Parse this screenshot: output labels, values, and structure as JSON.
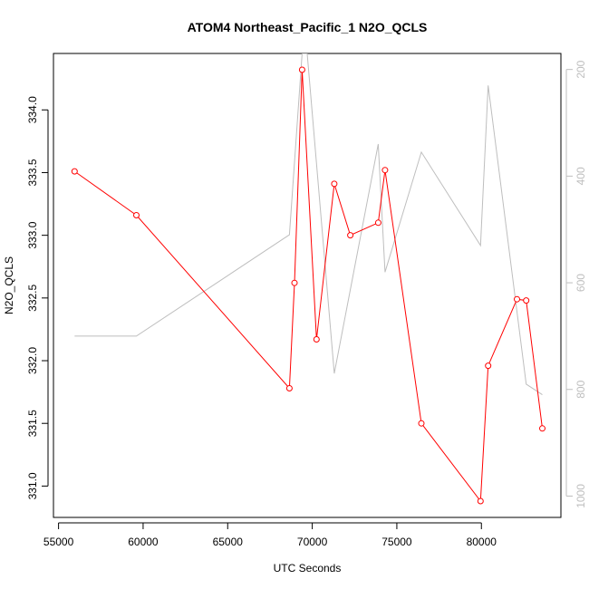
{
  "chart_data": {
    "type": "line",
    "title": "ATOM4 Northeast_Pacific_1 N2O_QCLS",
    "xlabel": "UTC Seconds",
    "ylabel": "N2O_QCLS",
    "xlim": [
      54700,
      84700
    ],
    "ylim": [
      330.75,
      334.45
    ],
    "y2lim": [
      1040,
      170
    ],
    "y2_reversed": true,
    "x_ticks": [
      55000,
      60000,
      65000,
      70000,
      75000,
      80000
    ],
    "y_ticks": [
      331.0,
      331.5,
      332.0,
      332.5,
      333.0,
      333.5,
      334.0
    ],
    "y_tick_labels": [
      "331.0",
      "331.5",
      "332.0",
      "332.5",
      "333.0",
      "333.5",
      "334.0"
    ],
    "y2_ticks": [
      200,
      400,
      600,
      800,
      1000
    ],
    "series": [
      {
        "color": "#ff0000",
        "marker": "open-circle",
        "axis": "left",
        "points": [
          [
            55950,
            333.51
          ],
          [
            59600,
            333.16
          ],
          [
            68650,
            331.78
          ],
          [
            68950,
            332.62
          ],
          [
            69400,
            334.32
          ],
          [
            70250,
            332.17
          ],
          [
            71300,
            333.41
          ],
          [
            72250,
            333.0
          ],
          [
            73900,
            333.1
          ],
          [
            74300,
            333.52
          ],
          [
            76450,
            331.5
          ],
          [
            79950,
            330.88
          ],
          [
            80400,
            331.96
          ],
          [
            82100,
            332.49
          ],
          [
            82650,
            332.48
          ],
          [
            83600,
            331.46
          ]
        ]
      },
      {
        "color": "#bebebe",
        "marker": "none",
        "axis": "right",
        "points": [
          [
            55950,
            700
          ],
          [
            59600,
            700
          ],
          [
            68650,
            510
          ],
          [
            69400,
            170
          ],
          [
            69700,
            170
          ],
          [
            71300,
            770
          ],
          [
            73900,
            340
          ],
          [
            74300,
            580
          ],
          [
            76450,
            355
          ],
          [
            79950,
            530
          ],
          [
            80400,
            230
          ],
          [
            82650,
            790
          ],
          [
            83600,
            810
          ]
        ]
      }
    ]
  }
}
